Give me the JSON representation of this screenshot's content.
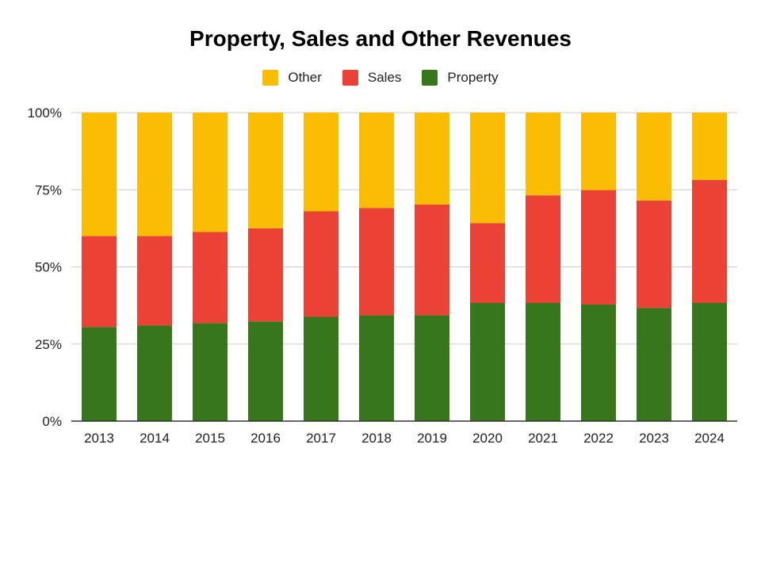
{
  "chart_data": {
    "type": "bar",
    "stacked": true,
    "normalized": true,
    "title": "Property, Sales and Other Revenues",
    "xlabel": "",
    "ylabel": "",
    "categories": [
      "2013",
      "2014",
      "2015",
      "2016",
      "2017",
      "2018",
      "2019",
      "2020",
      "2021",
      "2022",
      "2023",
      "2024"
    ],
    "series": [
      {
        "name": "Property",
        "color": "#38761d",
        "values": [
          30.5,
          31,
          31.8,
          32.3,
          33.8,
          34.3,
          34.3,
          38.3,
          38.3,
          37.8,
          36.7,
          38.3
        ]
      },
      {
        "name": "Sales",
        "color": "#ea4335",
        "values": [
          29.5,
          29,
          29.5,
          30.2,
          34.2,
          34.8,
          35.9,
          25.9,
          34.9,
          37.1,
          34.8,
          39.9
        ]
      },
      {
        "name": "Other",
        "color": "#fbbc04",
        "values": [
          40,
          40,
          38.7,
          37.5,
          32,
          30.9,
          29.8,
          35.8,
          26.8,
          25.1,
          28.5,
          21.8
        ]
      }
    ],
    "legend": {
      "position": "top",
      "order": [
        "Other",
        "Sales",
        "Property"
      ]
    },
    "ylim": [
      0,
      100
    ],
    "yticks": [
      "0%",
      "25%",
      "50%",
      "75%",
      "100%"
    ],
    "grid": true,
    "colors": {
      "gridline": "#cccccc",
      "baseline": "#333333"
    }
  }
}
